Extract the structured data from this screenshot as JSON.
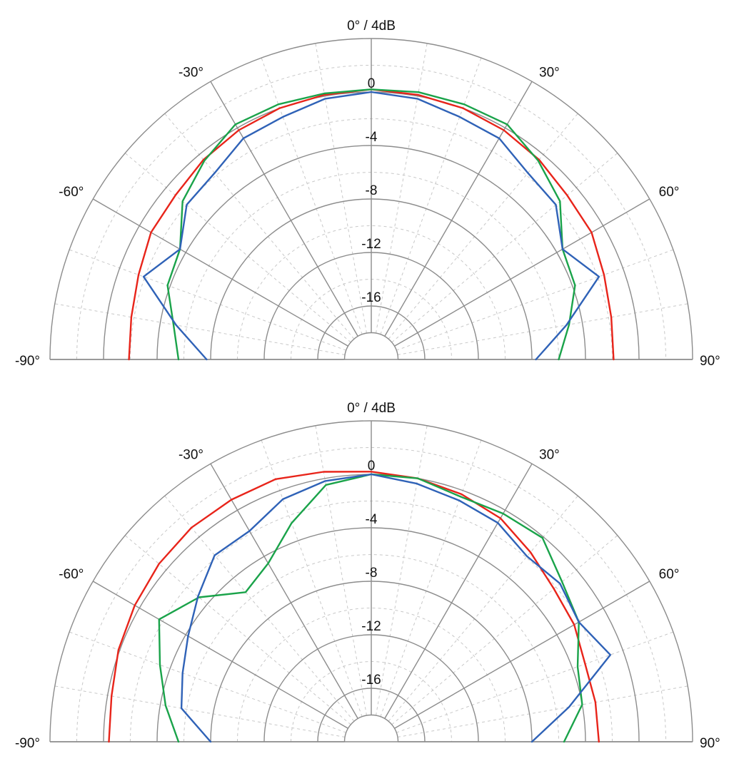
{
  "chart_data": [
    {
      "type": "polar",
      "center_label": "0° / 4dB",
      "angle_ticks": [
        -90,
        -60,
        -30,
        0,
        30,
        60,
        90
      ],
      "angle_labels": [
        "-90°",
        "-60°",
        "-30°",
        "0° / 4dB",
        "30°",
        "60°",
        "90°"
      ],
      "radial_ticks": [
        0,
        -4,
        -8,
        -12,
        -16
      ],
      "radial_labels": [
        "0",
        "-4",
        "-8",
        "-12",
        "-16"
      ],
      "rlim": [
        -20,
        4
      ],
      "angle_range": [
        -90,
        90
      ],
      "grid": true,
      "colors": {
        "red": "#e8241a",
        "green": "#1aa34a",
        "blue": "#2f62b7"
      },
      "series": [
        {
          "color": "#e8241a",
          "points": [
            [
              -90,
              -1.9
            ],
            [
              -80,
              -1.8
            ],
            [
              -70,
              -1.5
            ],
            [
              -60,
              -1.0
            ],
            [
              -50,
              -0.9
            ],
            [
              -40,
              -0.5
            ],
            [
              -30,
              -0.2
            ],
            [
              -20,
              0.0
            ],
            [
              -10,
              0.1
            ],
            [
              0,
              0.2
            ],
            [
              10,
              0.1
            ],
            [
              20,
              0.0
            ],
            [
              30,
              -0.2
            ],
            [
              40,
              -0.5
            ],
            [
              50,
              -0.9
            ],
            [
              60,
              -1.0
            ],
            [
              70,
              -1.5
            ],
            [
              80,
              -1.8
            ],
            [
              90,
              -1.9
            ]
          ]
        },
        {
          "color": "#1aa34a",
          "points": [
            [
              -90,
              -5.6
            ],
            [
              -80,
              -5.0
            ],
            [
              -70,
              -3.8
            ],
            [
              -60,
              -3.5
            ],
            [
              -50,
              -1.6
            ],
            [
              -40,
              -0.6
            ],
            [
              -30,
              0.3
            ],
            [
              -20,
              0.3
            ],
            [
              -10,
              0.2
            ],
            [
              0,
              0.2
            ],
            [
              10,
              0.3
            ],
            [
              20,
              0.3
            ],
            [
              30,
              0.3
            ],
            [
              40,
              -0.6
            ],
            [
              50,
              -1.6
            ],
            [
              60,
              -3.5
            ],
            [
              70,
              -3.8
            ],
            [
              80,
              -5.0
            ],
            [
              90,
              -6.0
            ]
          ]
        },
        {
          "color": "#2f62b7",
          "points": [
            [
              -90,
              -7.7
            ],
            [
              -80,
              -5.2
            ],
            [
              -70,
              -1.9
            ],
            [
              -60,
              -3.5
            ],
            [
              -50,
              -2.0
            ],
            [
              -40,
              -1.8
            ],
            [
              -30,
              -0.9
            ],
            [
              -20,
              -0.7
            ],
            [
              -10,
              -0.2
            ],
            [
              0,
              0.0
            ],
            [
              10,
              -0.2
            ],
            [
              20,
              -0.7
            ],
            [
              30,
              -0.9
            ],
            [
              40,
              -1.8
            ],
            [
              50,
              -2.0
            ],
            [
              60,
              -3.5
            ],
            [
              70,
              -1.9
            ],
            [
              80,
              -5.2
            ],
            [
              90,
              -7.7
            ]
          ]
        }
      ]
    },
    {
      "type": "polar",
      "center_label": "0° / 4dB",
      "angle_ticks": [
        -90,
        -60,
        -30,
        0,
        30,
        60,
        90
      ],
      "angle_labels": [
        "-90°",
        "-60°",
        "-30°",
        "0° / 4dB",
        "30°",
        "60°",
        "90°"
      ],
      "radial_ticks": [
        0,
        -4,
        -8,
        -12,
        -16
      ],
      "radial_labels": [
        "0",
        "-4",
        "-8",
        "-12",
        "-16"
      ],
      "rlim": [
        -20,
        4
      ],
      "angle_range": [
        -90,
        90
      ],
      "grid": true,
      "colors": {
        "red": "#e8241a",
        "green": "#1aa34a",
        "blue": "#2f62b7"
      },
      "series": [
        {
          "color": "#e8241a",
          "points": [
            [
              -90,
              -0.4
            ],
            [
              -80,
              -0.3
            ],
            [
              -70,
              0.1
            ],
            [
              -60,
              0.4
            ],
            [
              -50,
              0.7
            ],
            [
              -40,
              0.9
            ],
            [
              -30,
              0.9
            ],
            [
              -20,
              0.9
            ],
            [
              -10,
              0.5
            ],
            [
              0,
              0.2
            ],
            [
              10,
              0.0
            ],
            [
              20,
              -0.3
            ],
            [
              30,
              -0.7
            ],
            [
              40,
              -1.5
            ],
            [
              50,
              -2.2
            ],
            [
              60,
              -2.5
            ],
            [
              70,
              -3.0
            ],
            [
              80,
              -3.0
            ],
            [
              90,
              -3.0
            ]
          ]
        },
        {
          "color": "#1aa34a",
          "points": [
            [
              -90,
              -5.6
            ],
            [
              -80,
              -4.4
            ],
            [
              -70,
              -3.2
            ],
            [
              -60,
              -1.7
            ],
            [
              -50,
              -3.2
            ],
            [
              -40,
              -5.4
            ],
            [
              -30,
              -4.6
            ],
            [
              -20,
              -2.6
            ],
            [
              -10,
              -0.5
            ],
            [
              0,
              0.0
            ],
            [
              10,
              0.0
            ],
            [
              20,
              -0.5
            ],
            [
              30,
              -0.3
            ],
            [
              40,
              -0.1
            ],
            [
              50,
              -1.4
            ],
            [
              60,
              -2.1
            ],
            [
              70,
              -3.6
            ],
            [
              80,
              -4.0
            ],
            [
              90,
              -5.6
            ]
          ]
        },
        {
          "color": "#2f62b7",
          "points": [
            [
              -90,
              -8.0
            ],
            [
              -80,
              -5.6
            ],
            [
              -70,
              -5.0
            ],
            [
              -60,
              -4.2
            ],
            [
              -50,
              -3.1
            ],
            [
              -40,
              -1.8
            ],
            [
              -30,
              -1.8
            ],
            [
              -20,
              -0.7
            ],
            [
              -10,
              -0.2
            ],
            [
              0,
              0.0
            ],
            [
              10,
              -0.4
            ],
            [
              20,
              -0.8
            ],
            [
              30,
              -1.1
            ],
            [
              40,
              -1.9
            ],
            [
              50,
              -1.6
            ],
            [
              60,
              -2.1
            ],
            [
              70,
              -1.0
            ],
            [
              80,
              -5.0
            ],
            [
              90,
              -8.0
            ]
          ]
        }
      ]
    }
  ]
}
